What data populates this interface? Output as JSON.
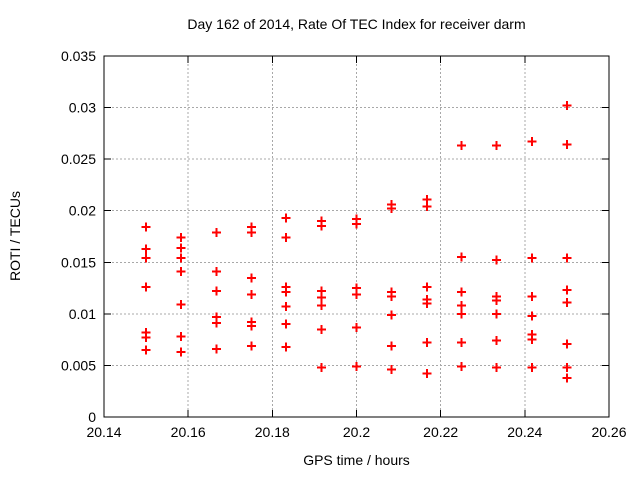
{
  "chart_data": {
    "type": "scatter",
    "title": "Day 162 of 2014, Rate Of TEC Index for receiver darm",
    "xlabel": "GPS time / hours",
    "ylabel": "ROTI / TECUs",
    "xlim": [
      20.14,
      20.26
    ],
    "ylim": [
      0,
      0.035
    ],
    "xticks": [
      20.14,
      20.16,
      20.18,
      20.2,
      20.22,
      20.24,
      20.26
    ],
    "xtick_labels": [
      "20.14",
      "20.16",
      "20.18",
      "20.2",
      "20.22",
      "20.24",
      "20.26"
    ],
    "yticks": [
      0,
      0.005,
      0.01,
      0.015,
      0.02,
      0.025,
      0.03,
      0.035
    ],
    "ytick_labels": [
      "0",
      "0.005",
      "0.01",
      "0.015",
      "0.02",
      "0.025",
      "0.03",
      "0.035"
    ],
    "grid": true,
    "legend": false,
    "marker": "plus",
    "marker_color": "#ff0000",
    "grid_color": "#a8a8a8",
    "axis_color": "#000000",
    "background_color": "#ffffff",
    "points": [
      [
        20.15,
        0.0184
      ],
      [
        20.15,
        0.0163
      ],
      [
        20.15,
        0.0154
      ],
      [
        20.15,
        0.0126
      ],
      [
        20.15,
        0.0082
      ],
      [
        20.15,
        0.0077
      ],
      [
        20.15,
        0.0065
      ],
      [
        20.1583,
        0.0174
      ],
      [
        20.1583,
        0.0164
      ],
      [
        20.1583,
        0.0154
      ],
      [
        20.1583,
        0.0141
      ],
      [
        20.1583,
        0.0109
      ],
      [
        20.1583,
        0.0078
      ],
      [
        20.1583,
        0.0063
      ],
      [
        20.1667,
        0.0179
      ],
      [
        20.1667,
        0.0141
      ],
      [
        20.1667,
        0.0122
      ],
      [
        20.1667,
        0.0097
      ],
      [
        20.1667,
        0.0091
      ],
      [
        20.1667,
        0.0066
      ],
      [
        20.175,
        0.0184
      ],
      [
        20.175,
        0.0179
      ],
      [
        20.175,
        0.0135
      ],
      [
        20.175,
        0.0119
      ],
      [
        20.175,
        0.0092
      ],
      [
        20.175,
        0.0088
      ],
      [
        20.175,
        0.0069
      ],
      [
        20.1833,
        0.0193
      ],
      [
        20.1833,
        0.0174
      ],
      [
        20.1833,
        0.0126
      ],
      [
        20.1833,
        0.0121
      ],
      [
        20.1833,
        0.0107
      ],
      [
        20.1833,
        0.009
      ],
      [
        20.1833,
        0.0068
      ],
      [
        20.1917,
        0.019
      ],
      [
        20.1917,
        0.0185
      ],
      [
        20.1917,
        0.0122
      ],
      [
        20.1917,
        0.0116
      ],
      [
        20.1917,
        0.0108
      ],
      [
        20.1917,
        0.0085
      ],
      [
        20.1917,
        0.0048
      ],
      [
        20.2,
        0.0192
      ],
      [
        20.2,
        0.0187
      ],
      [
        20.2,
        0.0125
      ],
      [
        20.2,
        0.0119
      ],
      [
        20.2,
        0.0087
      ],
      [
        20.2,
        0.0049
      ],
      [
        20.2083,
        0.0206
      ],
      [
        20.2083,
        0.0202
      ],
      [
        20.2083,
        0.0121
      ],
      [
        20.2083,
        0.0117
      ],
      [
        20.2083,
        0.0099
      ],
      [
        20.2083,
        0.0069
      ],
      [
        20.2083,
        0.0046
      ],
      [
        20.2167,
        0.0211
      ],
      [
        20.2167,
        0.0204
      ],
      [
        20.2167,
        0.0126
      ],
      [
        20.2167,
        0.0114
      ],
      [
        20.2167,
        0.011
      ],
      [
        20.2167,
        0.0072
      ],
      [
        20.2167,
        0.0042
      ],
      [
        20.225,
        0.0263
      ],
      [
        20.225,
        0.0155
      ],
      [
        20.225,
        0.0121
      ],
      [
        20.225,
        0.0108
      ],
      [
        20.225,
        0.01
      ],
      [
        20.225,
        0.0072
      ],
      [
        20.225,
        0.0049
      ],
      [
        20.2333,
        0.0263
      ],
      [
        20.2333,
        0.0152
      ],
      [
        20.2333,
        0.0117
      ],
      [
        20.2333,
        0.0113
      ],
      [
        20.2333,
        0.01
      ],
      [
        20.2333,
        0.0074
      ],
      [
        20.2333,
        0.0048
      ],
      [
        20.2417,
        0.0267
      ],
      [
        20.2417,
        0.0154
      ],
      [
        20.2417,
        0.0117
      ],
      [
        20.2417,
        0.0098
      ],
      [
        20.2417,
        0.008
      ],
      [
        20.2417,
        0.0075
      ],
      [
        20.2417,
        0.0048
      ],
      [
        20.25,
        0.0302
      ],
      [
        20.25,
        0.0264
      ],
      [
        20.25,
        0.0154
      ],
      [
        20.25,
        0.0123
      ],
      [
        20.25,
        0.0111
      ],
      [
        20.25,
        0.0071
      ],
      [
        20.25,
        0.0048
      ],
      [
        20.25,
        0.0038
      ]
    ]
  }
}
